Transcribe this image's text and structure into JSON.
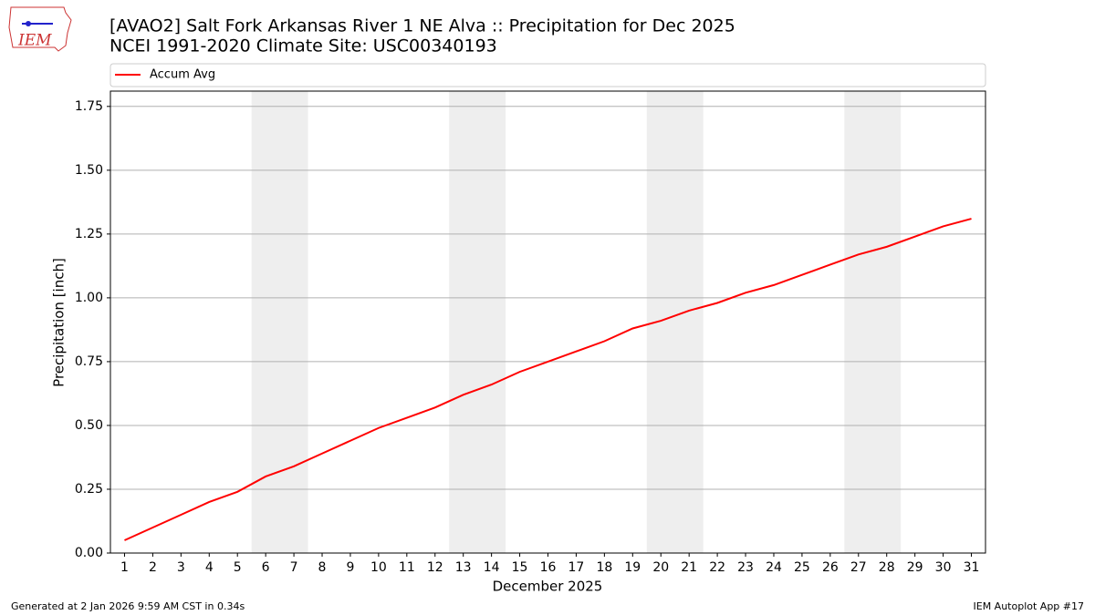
{
  "chart_data": {
    "type": "line",
    "title": "[AVAO2] Salt Fork Arkansas River 1 NE Alva :: Precipitation for Dec 2025",
    "subtitle": "NCEI 1991-2020 Climate Site: USC00340193",
    "x_label": "December 2025",
    "y_label": "Precipitation [inch]",
    "logo": "IEM",
    "footer_left": "Generated at 2 Jan 2026 9:59 AM CST in 0.34s",
    "footer_right": "IEM Autoplot App #17",
    "x": [
      1,
      2,
      3,
      4,
      5,
      6,
      7,
      8,
      9,
      10,
      11,
      12,
      13,
      14,
      15,
      16,
      17,
      18,
      19,
      20,
      21,
      22,
      23,
      24,
      25,
      26,
      27,
      28,
      29,
      30,
      31
    ],
    "series": [
      {
        "name": "Accum Avg",
        "color": "#ff0000",
        "values": [
          0.05,
          0.1,
          0.15,
          0.2,
          0.24,
          0.3,
          0.34,
          0.39,
          0.44,
          0.49,
          0.53,
          0.57,
          0.62,
          0.66,
          0.71,
          0.75,
          0.79,
          0.83,
          0.88,
          0.91,
          0.95,
          0.98,
          1.02,
          1.05,
          1.09,
          1.13,
          1.17,
          1.2,
          1.24,
          1.28,
          1.31
        ]
      }
    ],
    "weekend_spans": [
      [
        5.5,
        7.5
      ],
      [
        12.5,
        14.5
      ],
      [
        19.5,
        21.5
      ],
      [
        26.5,
        28.5
      ]
    ],
    "weekend_color": "#eeeeee",
    "xlim": [
      0.5,
      31.5
    ],
    "xticks": [
      1,
      2,
      3,
      4,
      5,
      6,
      7,
      8,
      9,
      10,
      11,
      12,
      13,
      14,
      15,
      16,
      17,
      18,
      19,
      20,
      21,
      22,
      23,
      24,
      25,
      26,
      27,
      28,
      29,
      30,
      31
    ],
    "ylim": [
      0,
      1.81
    ],
    "yticks": [
      {
        "value": 0,
        "label": "0.00"
      },
      {
        "value": 0.25,
        "label": "0.25"
      },
      {
        "value": 0.5,
        "label": "0.50"
      },
      {
        "value": 0.75,
        "label": "0.75"
      },
      {
        "value": 1,
        "label": "1.00"
      },
      {
        "value": 1.25,
        "label": "1.25"
      },
      {
        "value": 1.5,
        "label": "1.50"
      },
      {
        "value": 1.75,
        "label": "1.75"
      }
    ],
    "grid": true,
    "legend": "top"
  }
}
